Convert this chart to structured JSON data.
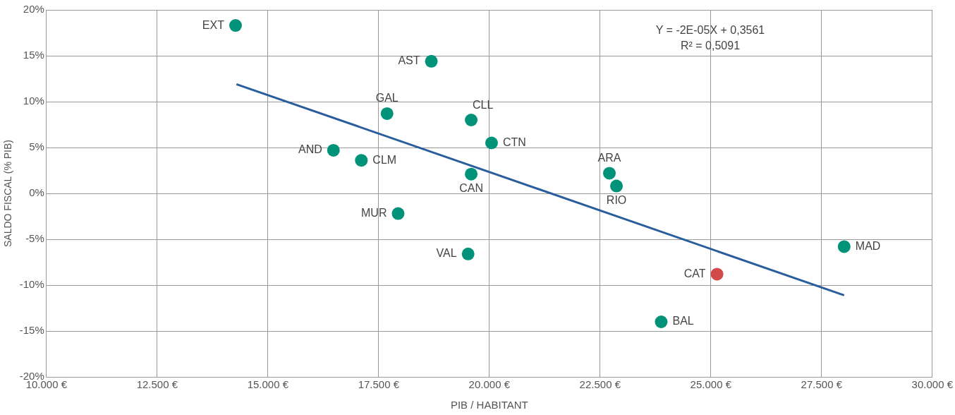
{
  "chart_data": {
    "type": "scatter",
    "xlabel": "PIB / HABITANT",
    "ylabel": "SALDO FISCAL (% PIB)",
    "xlim": [
      10000,
      30000
    ],
    "xticks": [
      {
        "value": 10000,
        "label": "10.000 €"
      },
      {
        "value": 12500,
        "label": "12.500 €"
      },
      {
        "value": 15000,
        "label": "15.000 €"
      },
      {
        "value": 17500,
        "label": "17.500 €"
      },
      {
        "value": 20000,
        "label": "20.000 €"
      },
      {
        "value": 22500,
        "label": "22.500 €"
      },
      {
        "value": 25000,
        "label": "25.000 €"
      },
      {
        "value": 27500,
        "label": "27.500 €"
      },
      {
        "value": 30000,
        "label": "30.000 €"
      }
    ],
    "ylim": [
      -20,
      20
    ],
    "yticks": [
      {
        "value": -20,
        "label": "-20%"
      },
      {
        "value": -15,
        "label": "-15%"
      },
      {
        "value": -10,
        "label": "-10%"
      },
      {
        "value": -5,
        "label": "-5%"
      },
      {
        "value": 0,
        "label": "0%"
      },
      {
        "value": 5,
        "label": "5%"
      },
      {
        "value": 10,
        "label": "10%"
      },
      {
        "value": 15,
        "label": "15%"
      },
      {
        "value": 20,
        "label": "20%"
      }
    ],
    "grid": true,
    "legend": false,
    "series": [
      {
        "marker": "circle",
        "x": [
          14270,
          18690,
          17690,
          19590,
          20050,
          16480,
          17110,
          19590,
          22710,
          22870,
          17940,
          19520,
          28010,
          25140,
          23880
        ],
        "values": [
          18.3,
          14.4,
          8.7,
          8.0,
          5.5,
          4.7,
          3.6,
          2.1,
          2.2,
          0.8,
          -2.2,
          -6.6,
          -5.8,
          -8.8,
          -14.0
        ],
        "colors": [
          "#00937a",
          "#00937a",
          "#00937a",
          "#00937a",
          "#00937a",
          "#00937a",
          "#00937a",
          "#00937a",
          "#00937a",
          "#00937a",
          "#00937a",
          "#00937a",
          "#00937a",
          "#d24a4a",
          "#00937a"
        ]
      },
      {
        "type": "line",
        "x": [
          14290,
          28010
        ],
        "values": [
          11.9,
          -11.1
        ],
        "color": "#2a5d9b",
        "marker": "none"
      }
    ],
    "annotations": [
      {
        "text": "EXT",
        "x": 14270,
        "y": 18.3
      },
      {
        "text": "AST",
        "x": 18690,
        "y": 14.4
      },
      {
        "text": "GAL",
        "x": 17690,
        "y": 8.7
      },
      {
        "text": "CLL",
        "x": 19590,
        "y": 8.0
      },
      {
        "text": "CTN",
        "x": 20050,
        "y": 5.5
      },
      {
        "text": "AND",
        "x": 16480,
        "y": 4.7
      },
      {
        "text": "CLM",
        "x": 17110,
        "y": 3.6
      },
      {
        "text": "CAN",
        "x": 19590,
        "y": 2.1
      },
      {
        "text": "ARA",
        "x": 22710,
        "y": 2.2
      },
      {
        "text": "RIO",
        "x": 22870,
        "y": 0.8
      },
      {
        "text": "MUR",
        "x": 17940,
        "y": -2.2
      },
      {
        "text": "VAL",
        "x": 19520,
        "y": -6.6
      },
      {
        "text": "MAD",
        "x": 28010,
        "y": -5.8
      },
      {
        "text": "CAT",
        "x": 25140,
        "y": -8.8
      },
      {
        "text": "BAL",
        "x": 23880,
        "y": -14.0
      },
      "Y = -2E-05X + 0,3561",
      "R² = 0,5091"
    ]
  }
}
